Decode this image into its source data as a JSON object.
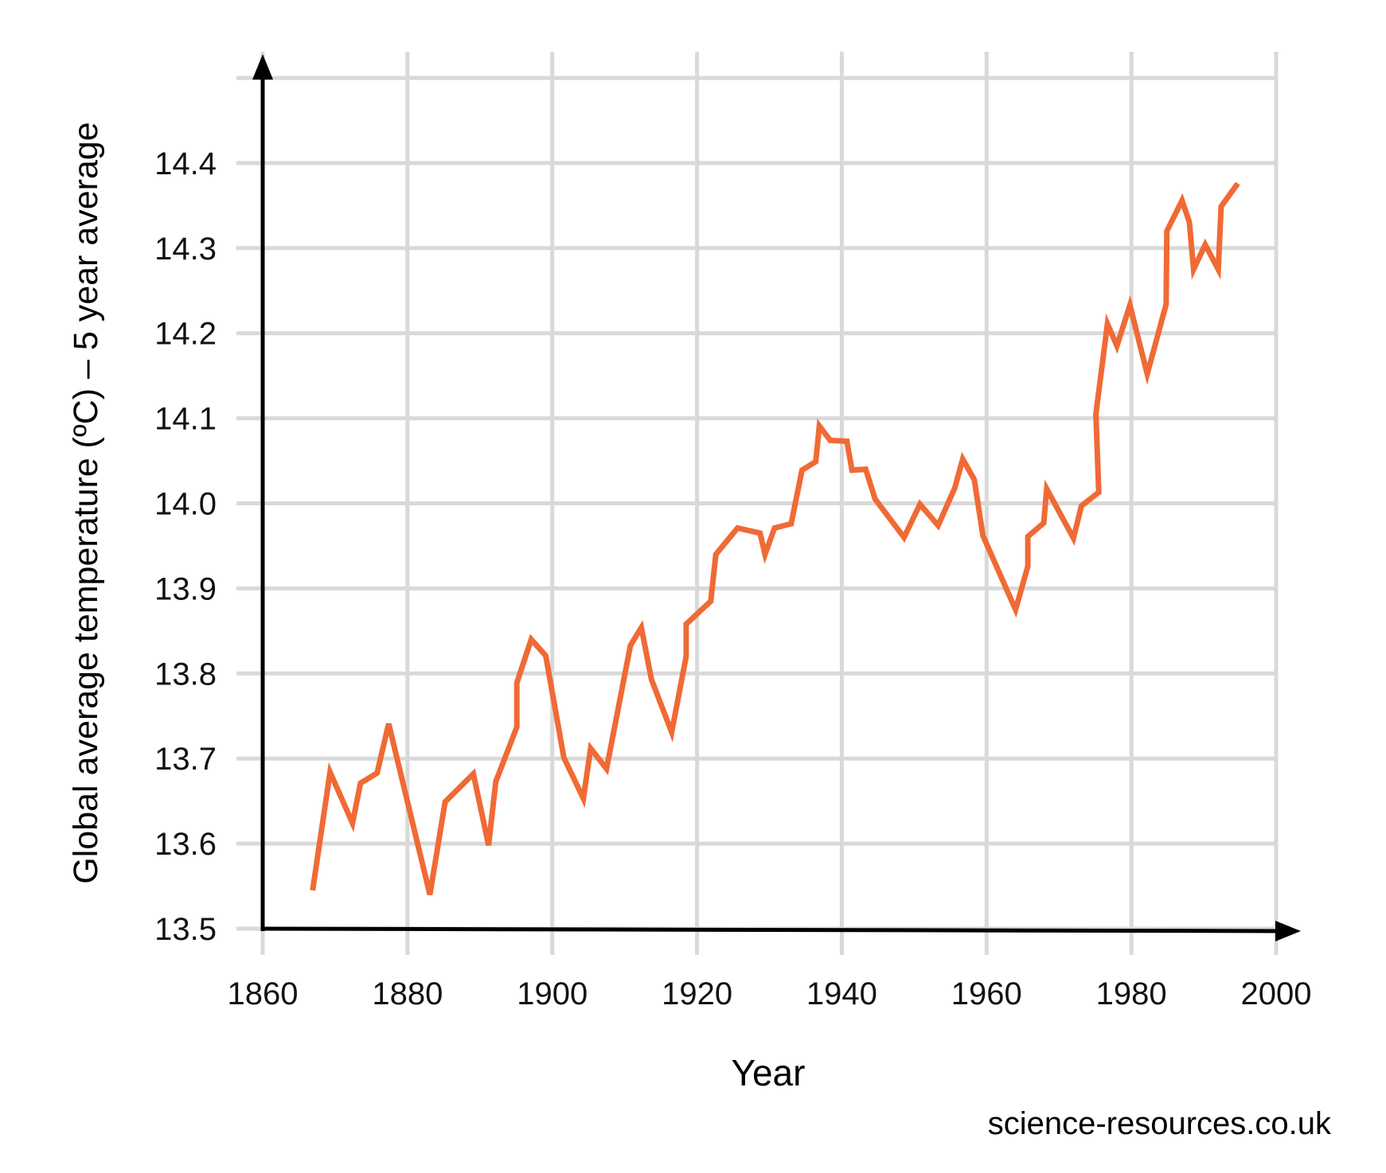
{
  "chart_data": {
    "type": "line",
    "title": "",
    "xlabel": "Year",
    "ylabel": "Global average temperature (ºC) – 5 year average",
    "xlim": [
      1860,
      2000
    ],
    "ylim": [
      13.5,
      14.5
    ],
    "xticks": [
      "1860",
      "1880",
      "1900",
      "1920",
      "1940",
      "1960",
      "1980",
      "2000"
    ],
    "yticks": [
      "13.5",
      "13.6",
      "13.7",
      "13.8",
      "13.9",
      "14.0",
      "14.1",
      "14.2",
      "14.3",
      "14.4"
    ],
    "grid": true,
    "line_color": "#f06a35",
    "series": [
      {
        "x": [
          1866.9,
          1869.3,
          1872.4,
          1873.5,
          1875.8,
          1877.4,
          1883.1,
          1885.2,
          1889.1,
          1891.2,
          1892.2,
          1895.1,
          1895.1,
          1897.1,
          1899.1,
          1901.6,
          1904.3,
          1905.3,
          1907.5,
          1910.8,
          1912.3,
          1913.7,
          1916.5,
          1918.5,
          1918.5,
          1921.9,
          1922.6,
          1925.6,
          1928.7,
          1929.4,
          1930.7,
          1933.0,
          1934.5,
          1936.4,
          1936.9,
          1938.4,
          1940.7,
          1941.4,
          1943.3,
          1944.6,
          1948.6,
          1950.8,
          1953.3,
          1955.6,
          1956.7,
          1958.3,
          1959.5,
          1964.0,
          1965.7,
          1965.7,
          1967.9,
          1968.3,
          1972.0,
          1973.1,
          1975.5,
          1975.1,
          1976.7,
          1978.0,
          1979.8,
          1982.2,
          1984.8,
          1984.9,
          1987.0,
          1988.0,
          1988.6,
          1990.2,
          1992.0,
          1992.4,
          1994.7
        ],
        "y": [
          13.545,
          13.684,
          13.624,
          13.671,
          13.683,
          13.741,
          13.54,
          13.649,
          13.682,
          13.598,
          13.673,
          13.737,
          13.789,
          13.84,
          13.821,
          13.701,
          13.653,
          13.712,
          13.688,
          13.833,
          13.854,
          13.793,
          13.731,
          13.82,
          13.858,
          13.885,
          13.94,
          13.971,
          13.965,
          13.94,
          13.971,
          13.976,
          14.039,
          14.049,
          14.091,
          14.074,
          14.073,
          14.039,
          14.04,
          14.005,
          13.96,
          13.999,
          13.974,
          14.018,
          14.052,
          14.028,
          13.962,
          13.875,
          13.926,
          13.961,
          13.977,
          14.017,
          13.959,
          13.997,
          14.013,
          14.105,
          14.211,
          14.185,
          14.233,
          14.152,
          14.234,
          14.32,
          14.356,
          14.331,
          14.275,
          14.304,
          14.275,
          14.349,
          14.376
        ]
      }
    ]
  },
  "credit": "science-resources.co.uk"
}
